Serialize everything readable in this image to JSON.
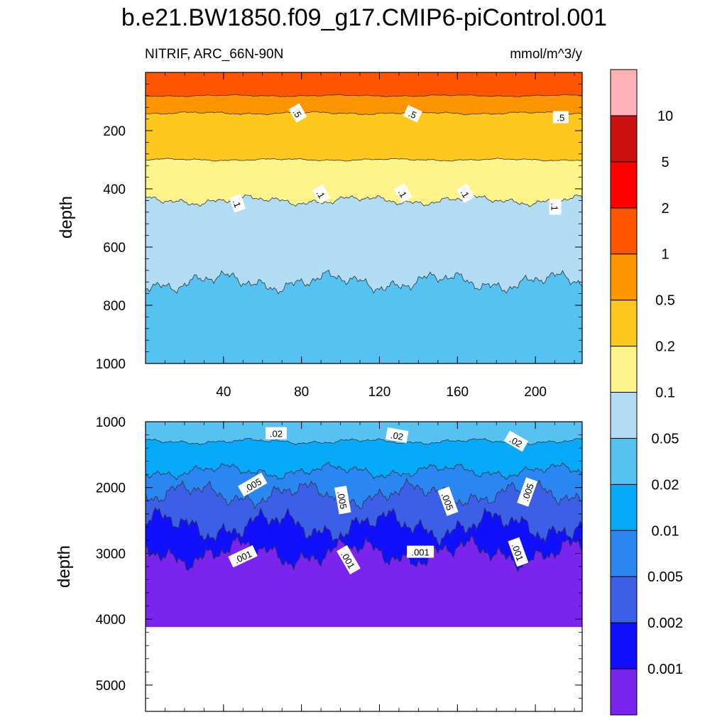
{
  "chart_data": {
    "type": "contour",
    "title": "b.e21.BW1850.f09_g17.CMIP6-piControl.001",
    "left_label": "NITRIF, ARC_66N-90N",
    "right_label": "mmol/m^3/y",
    "ylabel": "depth",
    "colorbar": {
      "levels": [
        "0.001",
        "0.002",
        "0.005",
        "0.01",
        "0.02",
        "0.05",
        "0.1",
        "0.2",
        "0.5",
        "1",
        "2",
        "5",
        "10"
      ],
      "colors": [
        "#7b24f0",
        "#1010ff",
        "#3b5fe6",
        "#2a86f0",
        "#06aaf8",
        "#56c2f2",
        "#b2dcf4",
        "#fff48a",
        "#fdc71e",
        "#fd9500",
        "#fd5500",
        "#ff0000",
        "#cc1010",
        "#ffb1b4"
      ]
    },
    "panels": [
      {
        "name": "upper",
        "xlim": [
          0,
          224
        ],
        "ylim": [
          0,
          1000
        ],
        "xticks": [
          "40",
          "80",
          "120",
          "160",
          "200"
        ],
        "xtick_values": [
          40,
          80,
          120,
          160,
          200
        ],
        "yticks": [
          "200",
          "400",
          "600",
          "800",
          "1000"
        ],
        "ytick_values": [
          200,
          400,
          600,
          800,
          1000
        ],
        "bands": [
          {
            "level": "1",
            "color": "#fd5500",
            "depth": 80,
            "amp": 4
          },
          {
            "level": "0.5",
            "color": "#fd9500",
            "depth": 140,
            "amp": 6
          },
          {
            "level": "0.2",
            "color": "#fdc71e",
            "depth": 300,
            "amp": 5
          },
          {
            "level": "0.1",
            "color": "#fff48a",
            "depth": 440,
            "amp": 20
          },
          {
            "level": "0.05",
            "color": "#b2dcf4",
            "depth": 720,
            "amp": 40
          },
          {
            "level": "0.02",
            "color": "#56c2f2",
            "depth": 1000,
            "amp": 0
          }
        ],
        "contour_labels": [
          {
            "text": ".5",
            "x": 78,
            "y": 140,
            "angle": 60
          },
          {
            "text": ".5",
            "x": 137,
            "y": 143,
            "angle": 25
          },
          {
            "text": ".5",
            "x": 213,
            "y": 155,
            "angle": 0
          },
          {
            "text": ".1",
            "x": 47,
            "y": 450,
            "angle": 70
          },
          {
            "text": ".1",
            "x": 90,
            "y": 418,
            "angle": 60
          },
          {
            "text": ".1",
            "x": 132,
            "y": 415,
            "angle": 60
          },
          {
            "text": ".1",
            "x": 164,
            "y": 416,
            "angle": 60
          },
          {
            "text": ".1",
            "x": 210,
            "y": 462,
            "angle": 90
          }
        ]
      },
      {
        "name": "lower",
        "xlim": [
          0,
          224
        ],
        "ylim": [
          1000,
          5400
        ],
        "yticks": [
          "1000",
          "2000",
          "3000",
          "4000",
          "5000"
        ],
        "ytick_values": [
          1000,
          2000,
          3000,
          4000,
          5000
        ],
        "max_depth": 4120,
        "bands": [
          {
            "level": "0.02",
            "color": "#56c2f2",
            "depth": 1300,
            "amp": 50
          },
          {
            "level": "0.01",
            "color": "#06aaf8",
            "depth": 1750,
            "amp": 130
          },
          {
            "level": "0.005",
            "color": "#2a86f0",
            "depth": 2100,
            "amp": 220
          },
          {
            "level": "0.002",
            "color": "#3b5fe6",
            "depth": 2580,
            "amp": 280
          },
          {
            "level": "0.001",
            "color": "#1010ff",
            "depth": 3000,
            "amp": 260
          },
          {
            "level": "<0.001",
            "color": "#7b24f0",
            "depth": 4120,
            "amp": 0
          }
        ],
        "contour_labels": [
          {
            "text": ".02",
            "x": 67,
            "y": 1180,
            "angle": 0
          },
          {
            "text": ".02",
            "x": 129,
            "y": 1210,
            "angle": 10
          },
          {
            "text": ".02",
            "x": 190,
            "y": 1300,
            "angle": 30
          },
          {
            "text": ".005",
            "x": 55,
            "y": 1960,
            "angle": -30
          },
          {
            "text": ".005",
            "x": 101,
            "y": 2190,
            "angle": 80
          },
          {
            "text": ".005",
            "x": 155,
            "y": 2210,
            "angle": 70
          },
          {
            "text": ".005",
            "x": 196,
            "y": 2070,
            "angle": -70
          },
          {
            "text": ".001",
            "x": 50,
            "y": 3050,
            "angle": -25
          },
          {
            "text": ".001",
            "x": 104,
            "y": 3100,
            "angle": 60
          },
          {
            "text": ".001",
            "x": 141,
            "y": 2980,
            "angle": 0
          },
          {
            "text": ".001",
            "x": 191,
            "y": 2980,
            "angle": 70
          }
        ]
      }
    ]
  }
}
